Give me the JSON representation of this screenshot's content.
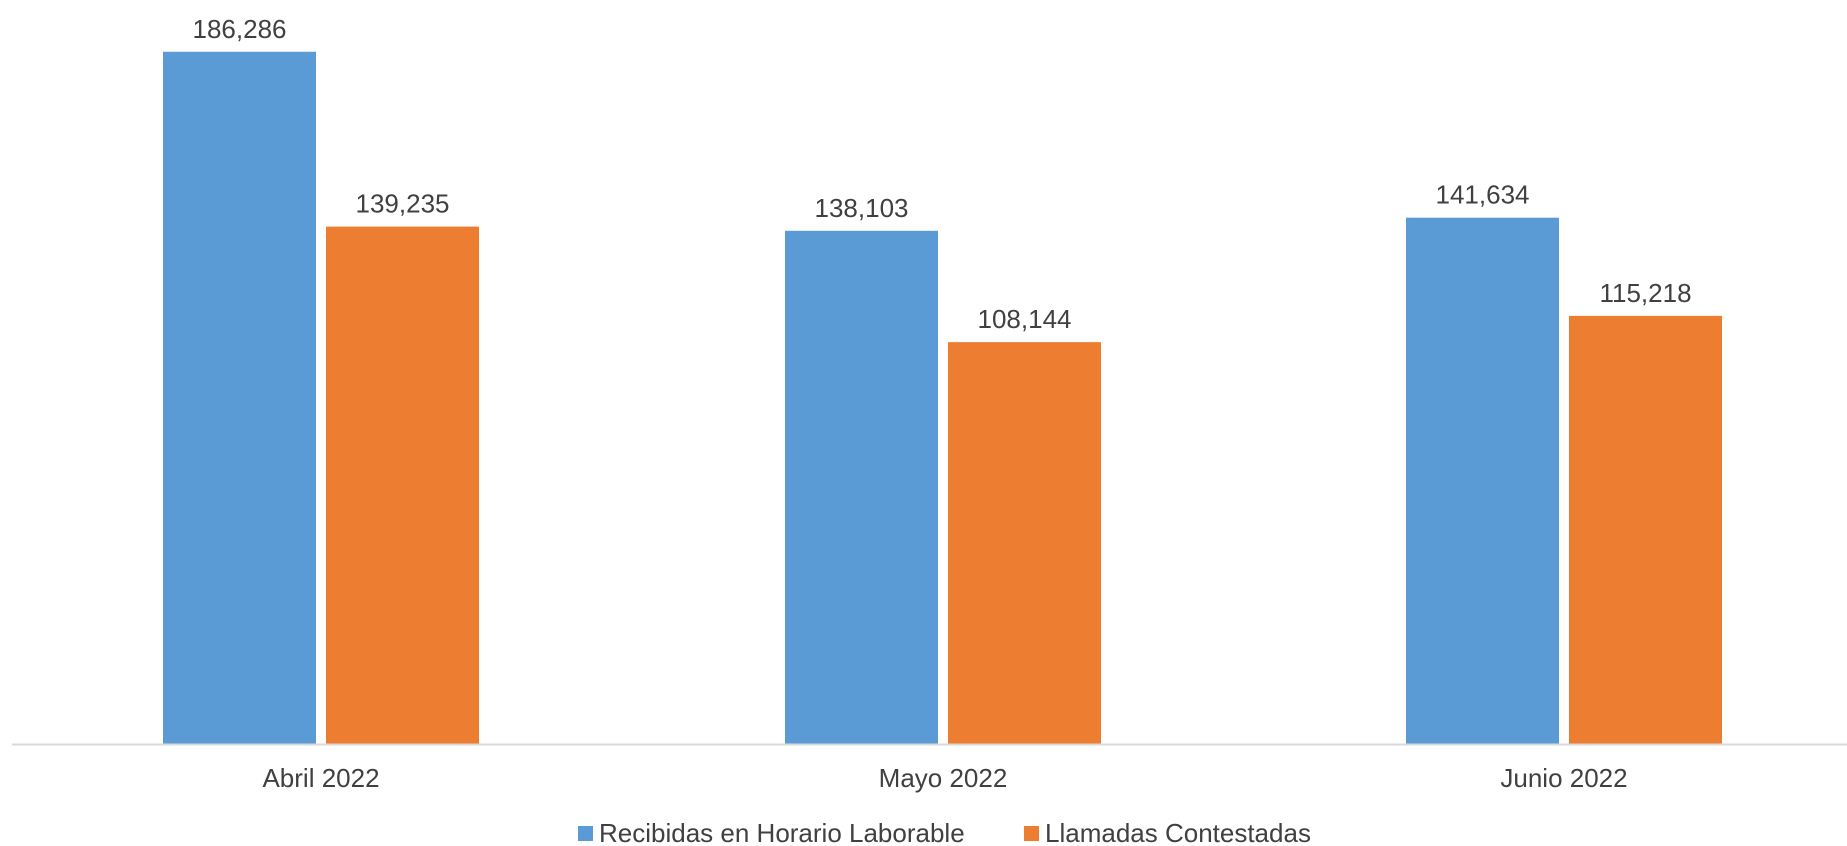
{
  "chart_data": {
    "type": "bar",
    "categories": [
      "Abril 2022",
      "Mayo 2022",
      "Junio 2022"
    ],
    "series": [
      {
        "name": "Recibidas en Horario Laborable",
        "color": "#5B9BD5",
        "values": [
          186286,
          138103,
          141634
        ],
        "labels": [
          "186,286",
          "138,103",
          "141,634"
        ]
      },
      {
        "name": "Llamadas Contestadas",
        "color": "#ED7D31",
        "values": [
          139235,
          108144,
          115218
        ],
        "labels": [
          "139,235",
          "108,144",
          "115,218"
        ]
      }
    ],
    "ylim": [
      0,
      200000
    ],
    "grid": false,
    "legend_position": "bottom",
    "axis_color": "#D9D9D9",
    "text_color": "#404040"
  }
}
